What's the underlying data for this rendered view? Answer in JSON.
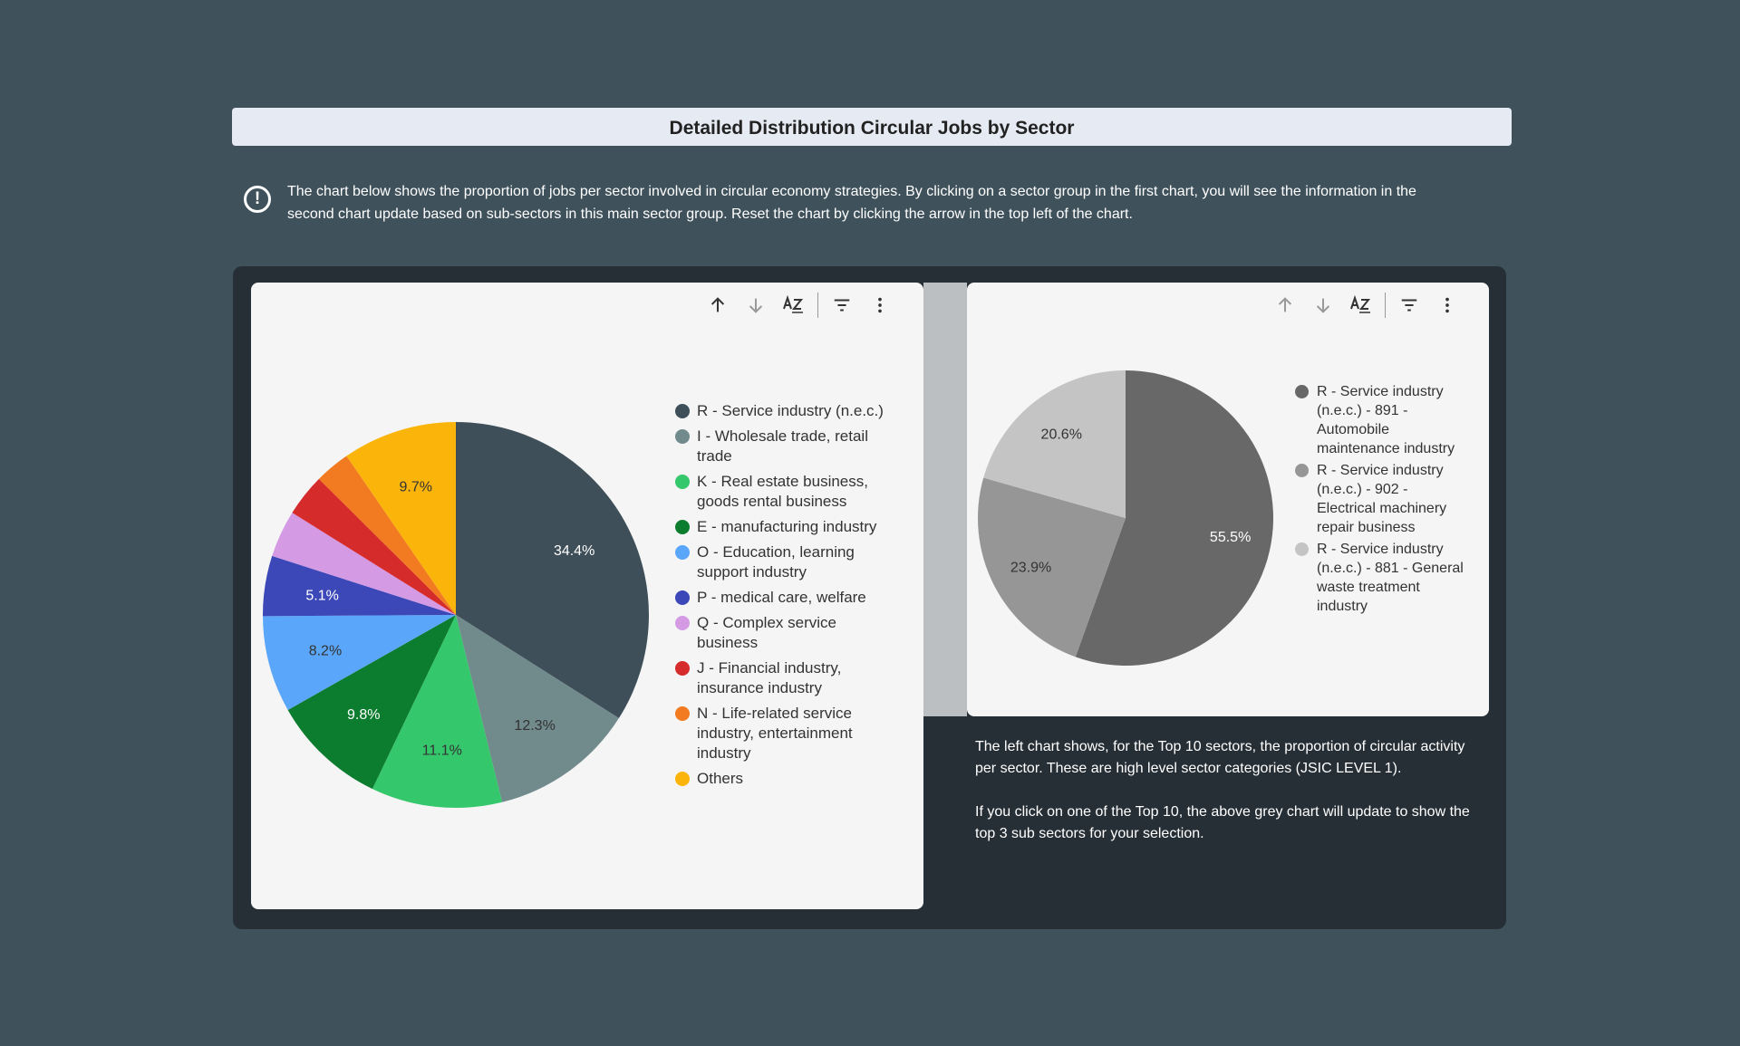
{
  "header": {
    "title": "Detailed Distribution Circular Jobs by Sector"
  },
  "info": {
    "icon": "exclamation-circle-icon",
    "text": "The chart below shows the proportion of jobs per sector involved in circular economy strategies. By clicking on a sector group in the first chart, you will see the information in the second chart update based on sub-sectors in this main sector group. Reset the chart by clicking the arrow in the top left of the chart."
  },
  "toolbar": {
    "icons": [
      "arrow-up-icon",
      "arrow-down-icon",
      "sort-az-icon",
      "filter-icon",
      "more-vert-icon"
    ]
  },
  "colors": {
    "background": "#3f515b",
    "panel": "#272f36",
    "card": "#f5f5f5"
  },
  "note": {
    "paragraph1": "The left chart shows, for the Top 10 sectors, the proportion of circular activity per sector. These are high level sector categories (JSIC LEVEL 1).",
    "paragraph2": "If you click on one of the Top 10, the above grey chart will update to show the top 3 sub sectors for your selection."
  },
  "chart_data": [
    {
      "type": "pie",
      "title": "",
      "legend_position": "right",
      "slices": [
        {
          "label": "R - Service industry (n.e.c.)",
          "value": 34.4,
          "display": "34.4%",
          "color": "#3e4f59"
        },
        {
          "label": "I - Wholesale trade, retail trade",
          "value": 12.3,
          "display": "12.3%",
          "color": "#718a8c"
        },
        {
          "label": "K - Real estate business, goods rental business",
          "value": 11.1,
          "display": "11.1%",
          "color": "#35c76b"
        },
        {
          "label": "E - manufacturing industry",
          "value": 9.8,
          "display": "9.8%",
          "color": "#0c7c2e"
        },
        {
          "label": "O - Education, learning support industry",
          "value": 8.2,
          "display": "8.2%",
          "color": "#5aa6fa"
        },
        {
          "label": "P - medical care, welfare",
          "value": 5.1,
          "display": "5.1%",
          "color": "#3c48b8"
        },
        {
          "label": "Q - Complex service business",
          "value": 4.0,
          "display": "",
          "color": "#d49ae3"
        },
        {
          "label": "J - Financial industry, insurance industry",
          "value": 3.6,
          "display": "",
          "color": "#d62b2b"
        },
        {
          "label": "N - Life-related service industry, entertainment industry",
          "value": 3.0,
          "display": "",
          "color": "#f27a20"
        },
        {
          "label": "Others",
          "value": 9.7,
          "display": "9.7%",
          "color": "#fbb40a"
        }
      ]
    },
    {
      "type": "pie",
      "title": "",
      "legend_position": "right",
      "slices": [
        {
          "label": "R - Service industry (n.e.c.) - 891 - Automobile maintenance industry",
          "value": 55.5,
          "display": "55.5%",
          "color": "#686868"
        },
        {
          "label": "R - Service industry (n.e.c.) - 902 - Electrical machinery repair business",
          "value": 23.9,
          "display": "23.9%",
          "color": "#969696"
        },
        {
          "label": "R - Service industry (n.e.c.) - 881 - General waste treatment industry",
          "value": 20.6,
          "display": "20.6%",
          "color": "#c4c4c4"
        }
      ]
    }
  ]
}
